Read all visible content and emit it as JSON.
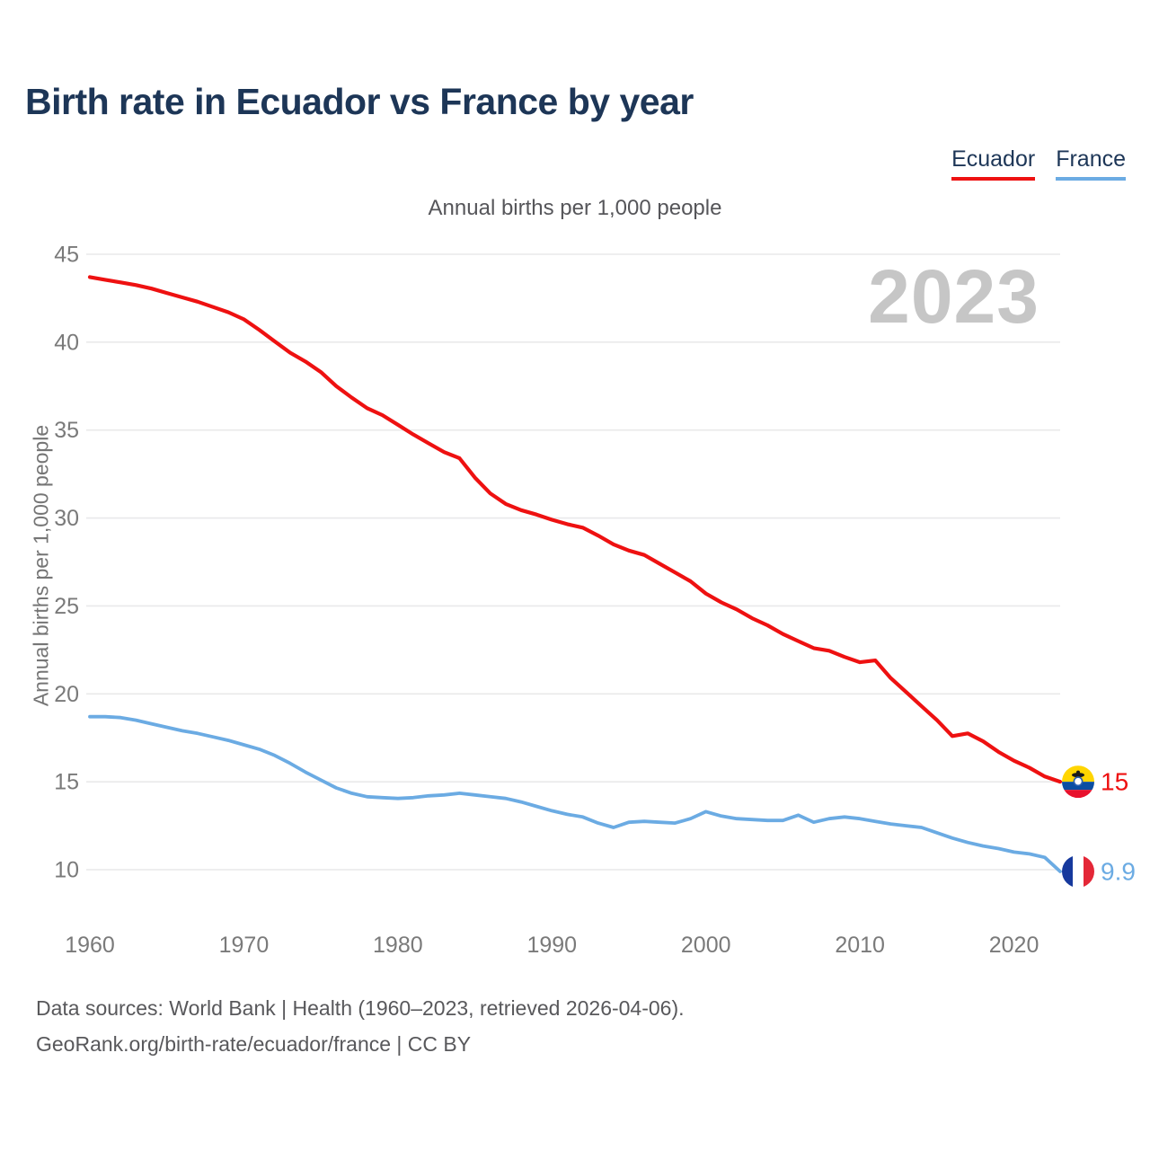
{
  "title": "Birth rate in Ecuador vs France by year",
  "subtitle": "Annual births per 1,000 people",
  "y_axis_title": "Annual births per 1,000 people",
  "watermark": "2023",
  "legend": {
    "items": [
      {
        "label": "Ecuador",
        "color": "#ee1111"
      },
      {
        "label": "France",
        "color": "#6babe3"
      }
    ]
  },
  "footer": {
    "line1": "Data sources: World Bank | Health (1960–2023, retrieved 2026-04-06).",
    "line2": "GeoRank.org/birth-rate/ecuador/france | CC BY"
  },
  "colors": {
    "title_navy": "#1d3657",
    "ecuador_red": "#ee1111",
    "france_blue": "#6babe3",
    "tick_gray": "#7a7a7a",
    "gridline": "#e9e9ea",
    "watermark_gray": "#c6c6c6"
  },
  "chart_data": {
    "type": "line",
    "title": "Birth rate in Ecuador vs France by year",
    "subtitle": "Annual births per 1,000 people",
    "ylabel": "Annual births per 1,000 people",
    "grid": "horizontal",
    "legend_position": "top-right",
    "xlim": [
      1960,
      2023
    ],
    "ylim": [
      10,
      45
    ],
    "xticks": [
      1960,
      1970,
      1980,
      1990,
      2000,
      2010,
      2020
    ],
    "yticks": [
      10,
      15,
      20,
      25,
      30,
      35,
      40,
      45
    ],
    "x": [
      1960,
      1961,
      1962,
      1963,
      1964,
      1965,
      1966,
      1967,
      1968,
      1969,
      1970,
      1971,
      1972,
      1973,
      1974,
      1975,
      1976,
      1977,
      1978,
      1979,
      1980,
      1981,
      1982,
      1983,
      1984,
      1985,
      1986,
      1987,
      1988,
      1989,
      1990,
      1991,
      1992,
      1993,
      1994,
      1995,
      1996,
      1997,
      1998,
      1999,
      2000,
      2001,
      2002,
      2003,
      2004,
      2005,
      2006,
      2007,
      2008,
      2009,
      2010,
      2011,
      2012,
      2013,
      2014,
      2015,
      2016,
      2017,
      2018,
      2019,
      2020,
      2021,
      2022,
      2023
    ],
    "series": [
      {
        "name": "Ecuador",
        "color": "#ee1111",
        "stroke_width": 4.2,
        "end_label": "15",
        "flag": "ecuador-flag-icon",
        "values": [
          43.7,
          43.55,
          43.4,
          43.25,
          43.05,
          42.8,
          42.55,
          42.3,
          42.0,
          41.7,
          41.3,
          40.7,
          40.05,
          39.4,
          38.9,
          38.3,
          37.5,
          36.85,
          36.25,
          35.85,
          35.3,
          34.75,
          34.25,
          33.75,
          33.4,
          32.3,
          31.4,
          30.8,
          30.45,
          30.2,
          29.9,
          29.65,
          29.45,
          29.0,
          28.5,
          28.15,
          27.9,
          27.4,
          26.9,
          26.4,
          25.7,
          25.2,
          24.8,
          24.3,
          23.9,
          23.4,
          23.0,
          22.6,
          22.45,
          22.1,
          21.8,
          21.9,
          20.9,
          20.1,
          19.3,
          18.5,
          17.6,
          17.75,
          17.3,
          16.7,
          16.2,
          15.8,
          15.3,
          15.0
        ]
      },
      {
        "name": "France",
        "color": "#6babe3",
        "stroke_width": 3.8,
        "end_label": "9.9",
        "flag": "france-flag-icon",
        "values": [
          18.7,
          18.7,
          18.65,
          18.5,
          18.3,
          18.1,
          17.9,
          17.75,
          17.55,
          17.35,
          17.1,
          16.85,
          16.5,
          16.05,
          15.55,
          15.1,
          14.65,
          14.35,
          14.15,
          14.1,
          14.05,
          14.1,
          14.2,
          14.25,
          14.35,
          14.25,
          14.15,
          14.05,
          13.85,
          13.6,
          13.35,
          13.15,
          13.0,
          12.65,
          12.4,
          12.7,
          12.75,
          12.7,
          12.65,
          12.9,
          13.3,
          13.05,
          12.9,
          12.85,
          12.8,
          12.8,
          13.1,
          12.7,
          12.9,
          13.0,
          12.9,
          12.75,
          12.6,
          12.5,
          12.4,
          12.1,
          11.8,
          11.55,
          11.35,
          11.2,
          11.0,
          10.9,
          10.7,
          9.9
        ]
      }
    ]
  }
}
